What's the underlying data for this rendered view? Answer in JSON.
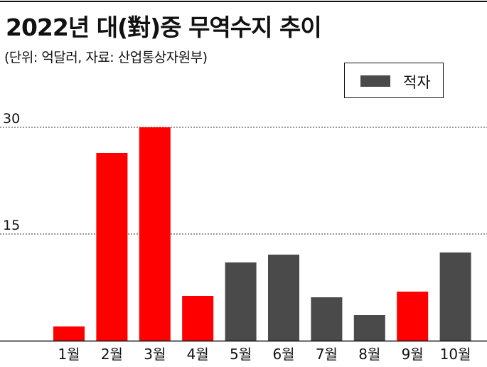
{
  "header": {
    "title": "2022년 대(對)중 무역수지 추이",
    "subtitle": "(단위: 억달러, 자료: 산업통상자원부)"
  },
  "legend": {
    "label": "적자",
    "color": "#4a4a4a"
  },
  "colors": {
    "surplus": "#ff0000",
    "deficit": "#4a4a4a"
  },
  "chart_data": {
    "type": "bar",
    "title": "2022년 대(對)중 무역수지 추이",
    "subtitle": "(단위: 억달러, 자료: 산업통상자원부)",
    "categories": [
      "1월",
      "2월",
      "3월",
      "4월",
      "5월",
      "6월",
      "7월",
      "8월",
      "9월",
      "10월"
    ],
    "values": [
      2.0,
      26.4,
      30.0,
      6.3,
      11.0,
      12.1,
      6.1,
      3.6,
      6.9,
      12.4
    ],
    "status": [
      "surplus",
      "surplus",
      "surplus",
      "surplus",
      "deficit",
      "deficit",
      "deficit",
      "deficit",
      "surplus",
      "deficit"
    ],
    "yticks": [
      "30",
      "15"
    ],
    "ylim": [
      0,
      30
    ],
    "legend": [
      "적자"
    ],
    "grid": "dotted horizontal at 15 and 30"
  }
}
